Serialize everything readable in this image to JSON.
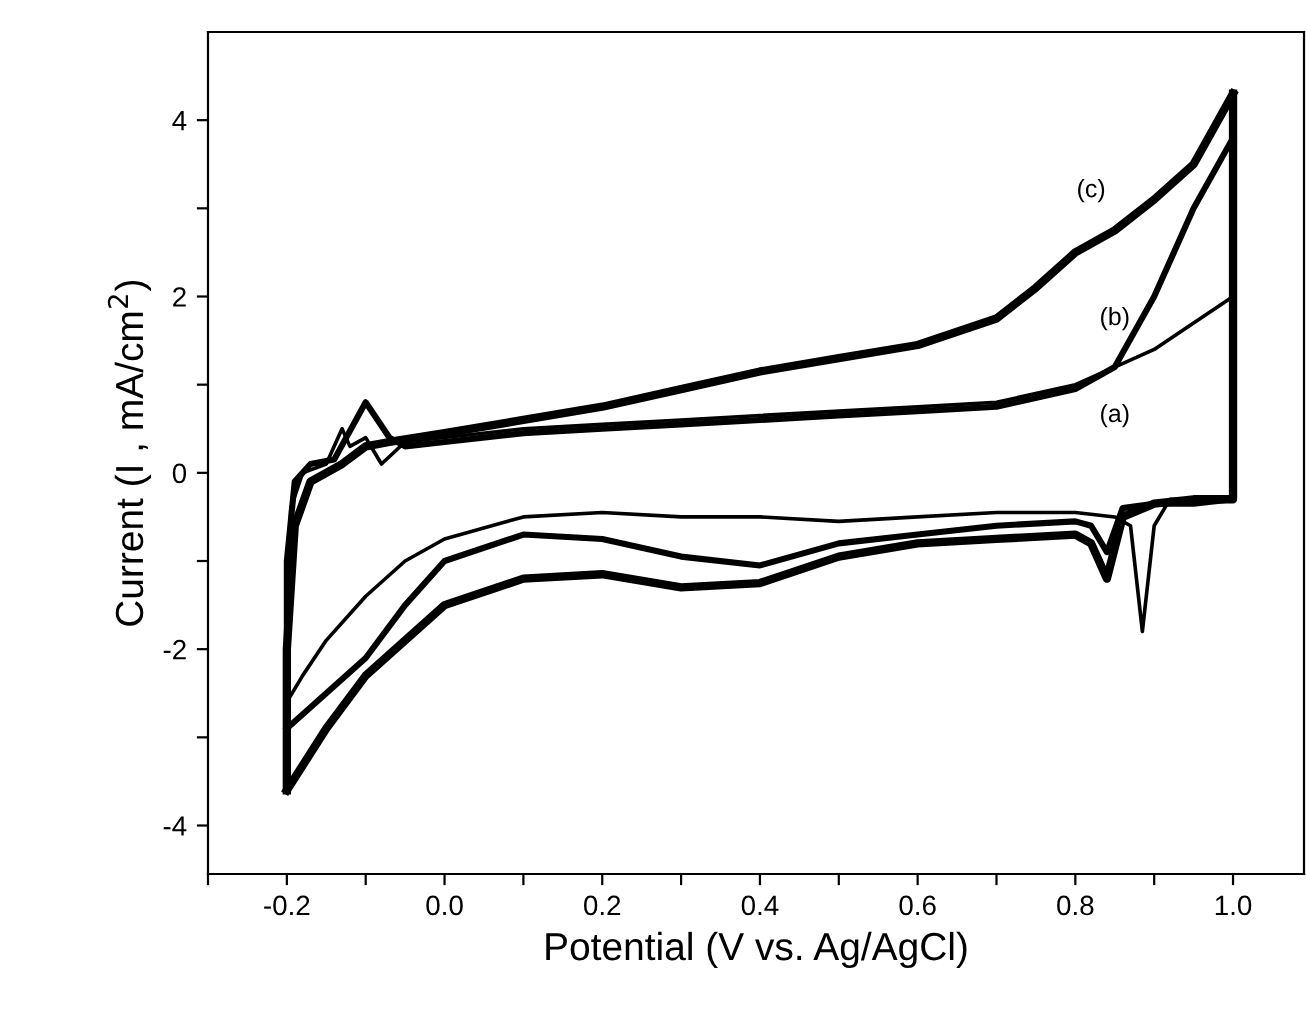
{
  "chart_data": {
    "type": "line",
    "xlabel": "Potential (V vs. Ag/AgCl)",
    "ylabel": "Current (I , mA/cm$^{2}$)",
    "xlim": [
      -0.3,
      1.09
    ],
    "ylim": [
      -4.55,
      5.0
    ],
    "xticks": [
      {
        "value": -0.3,
        "label": null
      },
      {
        "value": -0.2,
        "label": "-0.2"
      },
      {
        "value": -0.1,
        "label": null
      },
      {
        "value": 0.0,
        "label": "0.0"
      },
      {
        "value": 0.1,
        "label": null
      },
      {
        "value": 0.2,
        "label": "0.2"
      },
      {
        "value": 0.3,
        "label": null
      },
      {
        "value": 0.4,
        "label": "0.4"
      },
      {
        "value": 0.5,
        "label": null
      },
      {
        "value": 0.6,
        "label": "0.6"
      },
      {
        "value": 0.7,
        "label": null
      },
      {
        "value": 0.8,
        "label": "0.8"
      },
      {
        "value": 0.9,
        "label": null
      },
      {
        "value": 1.0,
        "label": "1.0"
      }
    ],
    "yticks": [
      -4,
      {
        "value": -3,
        "label": null
      },
      -2,
      {
        "value": -1,
        "label": null
      },
      0,
      {
        "value": 1,
        "label": null
      },
      2,
      {
        "value": 3,
        "label": null
      },
      4
    ],
    "grid": false,
    "legend": false,
    "marker": "none",
    "line_style": "solid",
    "series": [
      {
        "name": "(a)",
        "color": "#000000",
        "x": [
          -0.2,
          -0.2,
          -0.195,
          -0.18,
          -0.15,
          -0.13,
          -0.12,
          -0.1,
          -0.08,
          -0.05,
          0.0,
          0.1,
          0.2,
          0.3,
          0.4,
          0.5,
          0.6,
          0.7,
          0.8,
          0.85,
          0.9,
          0.95,
          1.0
        ],
        "values": [
          -2.6,
          -1.5,
          -0.4,
          0.0,
          0.1,
          0.5,
          0.3,
          0.4,
          0.1,
          0.35,
          0.4,
          0.5,
          0.55,
          0.6,
          0.65,
          0.7,
          0.75,
          0.8,
          1.0,
          1.2,
          1.4,
          1.7,
          2.0
        ]
      },
      {
        "color": "#000000",
        "x": [
          1.0,
          1.0,
          0.97,
          0.92,
          0.9,
          0.885,
          0.87,
          0.85,
          0.8,
          0.7,
          0.6,
          0.5,
          0.4,
          0.3,
          0.2,
          0.1,
          0.0,
          -0.05,
          -0.1,
          -0.15,
          -0.18,
          -0.2
        ],
        "values": [
          2.0,
          -0.3,
          -0.3,
          -0.3,
          -0.6,
          -1.8,
          -0.6,
          -0.5,
          -0.45,
          -0.45,
          -0.5,
          -0.55,
          -0.5,
          -0.5,
          -0.45,
          -0.5,
          -0.75,
          -1.0,
          -1.4,
          -1.9,
          -2.3,
          -2.6
        ]
      },
      {
        "name": "(b)",
        "color": "#000000",
        "x": [
          -0.2,
          -0.2,
          -0.19,
          -0.17,
          -0.14,
          -0.1,
          -0.07,
          -0.05,
          0.0,
          0.1,
          0.2,
          0.3,
          0.4,
          0.5,
          0.6,
          0.7,
          0.8,
          0.85,
          0.9,
          0.95,
          1.0
        ],
        "values": [
          -2.9,
          -1.0,
          -0.1,
          0.1,
          0.15,
          0.8,
          0.4,
          0.3,
          0.35,
          0.45,
          0.5,
          0.55,
          0.6,
          0.65,
          0.7,
          0.75,
          0.95,
          1.2,
          2.0,
          3.0,
          3.8
        ]
      },
      {
        "color": "#000000",
        "x": [
          1.0,
          1.0,
          0.95,
          0.9,
          0.86,
          0.84,
          0.82,
          0.8,
          0.7,
          0.6,
          0.5,
          0.4,
          0.3,
          0.2,
          0.1,
          0.0,
          -0.05,
          -0.1,
          -0.15,
          -0.2
        ],
        "values": [
          3.8,
          -0.3,
          -0.35,
          -0.35,
          -0.4,
          -0.9,
          -0.6,
          -0.55,
          -0.6,
          -0.7,
          -0.8,
          -1.05,
          -0.95,
          -0.75,
          -0.7,
          -1.0,
          -1.5,
          -2.1,
          -2.5,
          -2.9
        ]
      },
      {
        "name": "(c)",
        "color": "#000000",
        "x": [
          -0.2,
          -0.2,
          -0.19,
          -0.17,
          -0.13,
          -0.1,
          -0.07,
          0.0,
          0.1,
          0.2,
          0.3,
          0.4,
          0.5,
          0.6,
          0.7,
          0.75,
          0.8,
          0.85,
          0.9,
          0.95,
          1.0
        ],
        "values": [
          -3.6,
          -2.0,
          -0.6,
          -0.1,
          0.1,
          0.3,
          0.35,
          0.45,
          0.6,
          0.75,
          0.95,
          1.15,
          1.3,
          1.45,
          1.75,
          2.1,
          2.5,
          2.75,
          3.1,
          3.5,
          4.3
        ]
      },
      {
        "color": "#000000",
        "x": [
          1.0,
          1.0,
          0.95,
          0.9,
          0.86,
          0.84,
          0.82,
          0.8,
          0.7,
          0.6,
          0.5,
          0.4,
          0.3,
          0.2,
          0.1,
          0.0,
          -0.1,
          -0.15,
          -0.2
        ],
        "values": [
          4.3,
          -0.3,
          -0.3,
          -0.35,
          -0.5,
          -1.2,
          -0.8,
          -0.7,
          -0.75,
          -0.8,
          -0.95,
          -1.25,
          -1.3,
          -1.15,
          -1.2,
          -1.5,
          -2.3,
          -2.9,
          -3.6
        ]
      }
    ]
  }
}
